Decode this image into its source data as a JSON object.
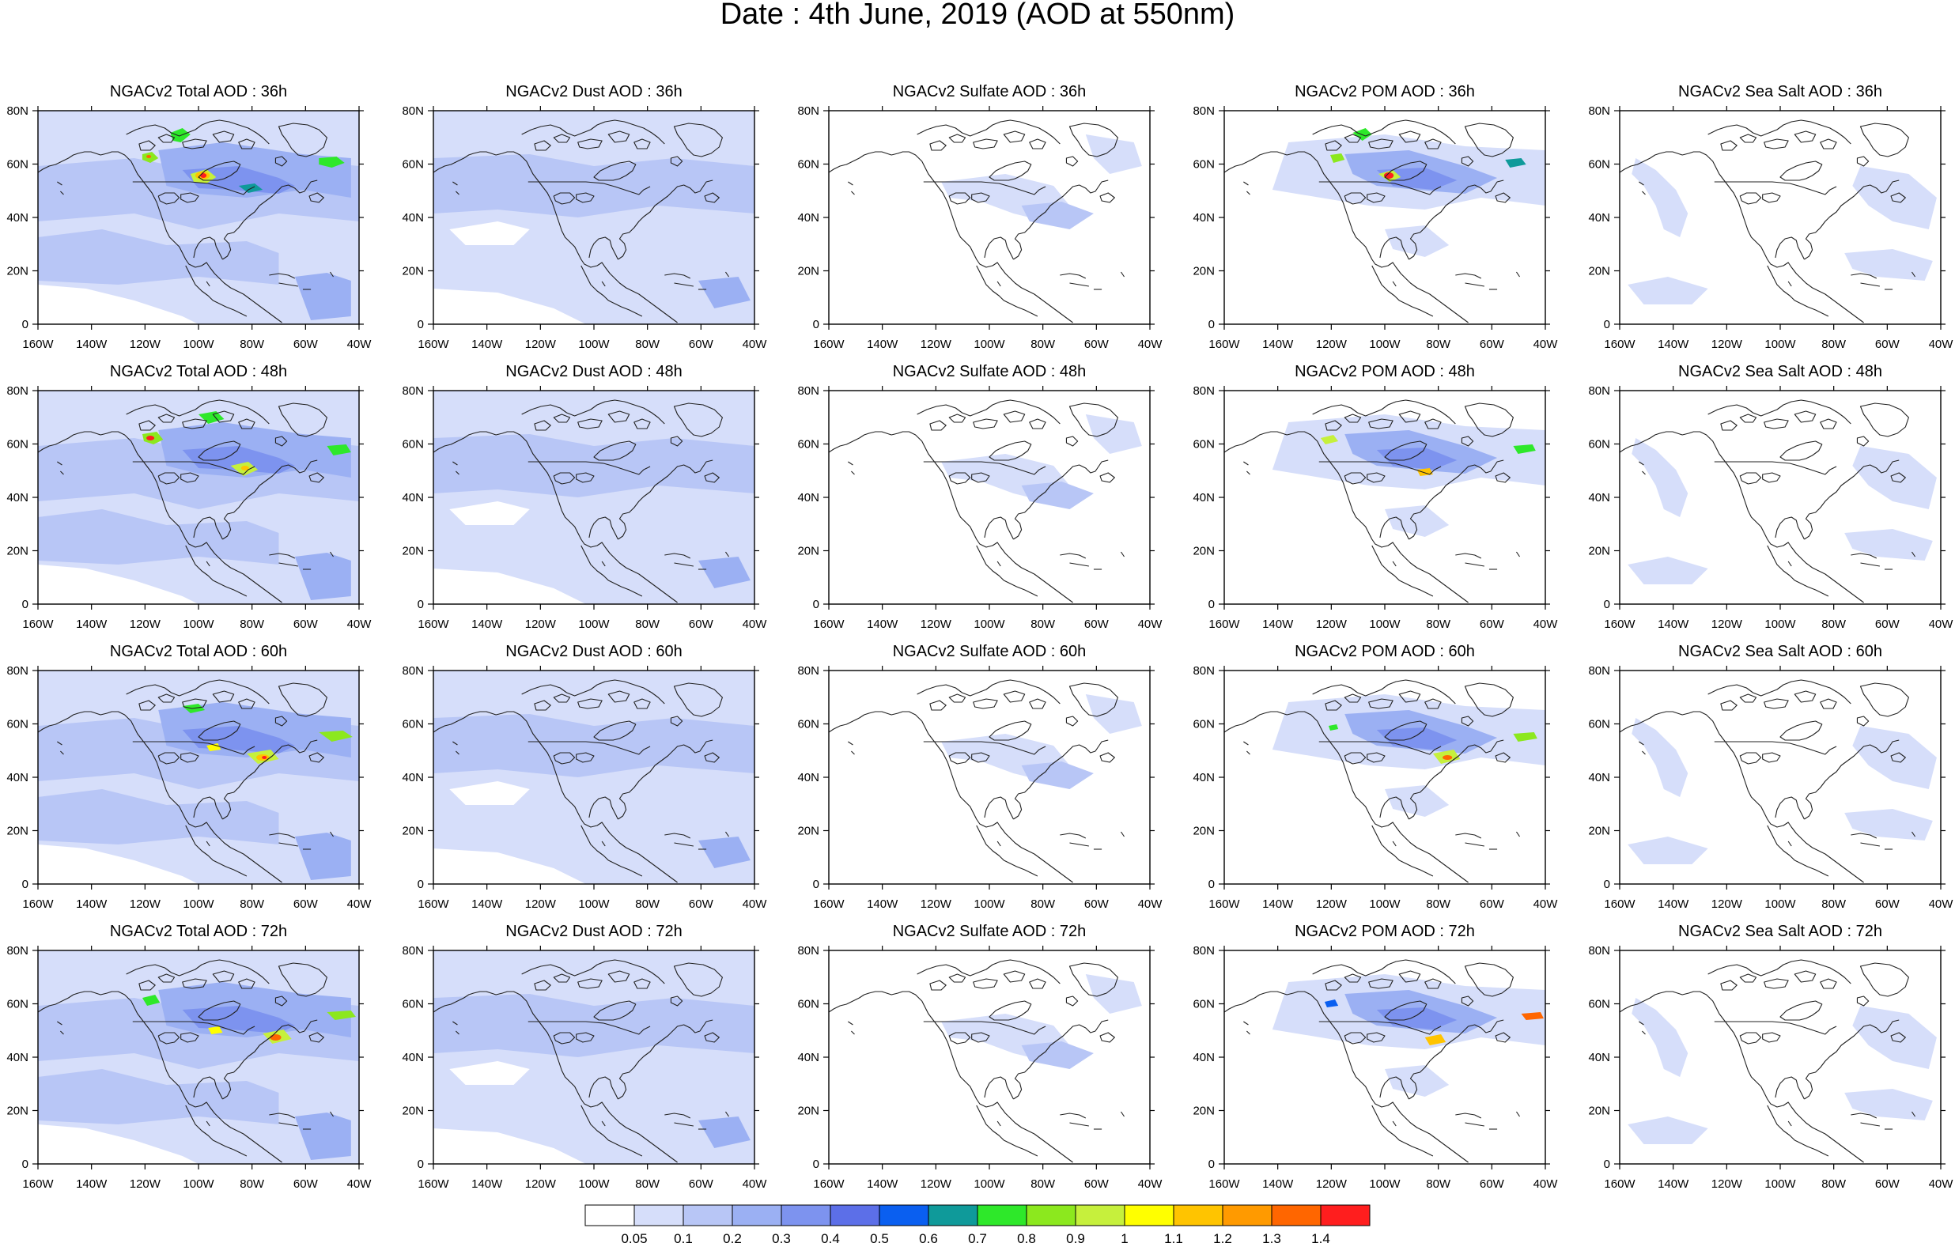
{
  "title": "Date : 4th June, 2019 (AOD at 550nm)",
  "panel_titles": [
    [
      "NGACv2 Total AOD : 36h",
      "NGACv2 Dust AOD : 36h",
      "NGACv2 Sulfate AOD : 36h",
      "NGACv2 POM AOD : 36h",
      "NGACv2 Sea Salt AOD : 36h"
    ],
    [
      "NGACv2 Total AOD : 48h",
      "NGACv2 Dust AOD : 48h",
      "NGACv2 Sulfate AOD : 48h",
      "NGACv2 POM AOD : 48h",
      "NGACv2 Sea Salt AOD : 48h"
    ],
    [
      "NGACv2 Total AOD : 60h",
      "NGACv2 Dust AOD : 60h",
      "NGACv2 Sulfate AOD : 60h",
      "NGACv2 POM AOD : 60h",
      "NGACv2 Sea Salt AOD : 60h"
    ],
    [
      "NGACv2 Total AOD : 72h",
      "NGACv2 Dust AOD : 72h",
      "NGACv2 Sulfate AOD : 72h",
      "NGACv2 POM AOD : 72h",
      "NGACv2 Sea Salt  AOD : 72h"
    ]
  ],
  "x_ticks": [
    "160W",
    "140W",
    "120W",
    "100W",
    "80W",
    "60W",
    "40W"
  ],
  "y_ticks": [
    "0",
    "20N",
    "40N",
    "60N",
    "80N"
  ],
  "colorbar": {
    "labels": [
      "0.05",
      "0.1",
      "0.2",
      "0.3",
      "0.4",
      "0.5",
      "0.6",
      "0.7",
      "0.8",
      "0.9",
      "1",
      "1.1",
      "1.2",
      "1.3",
      "1.4"
    ],
    "colors": [
      "#ffffff",
      "#d6defa",
      "#b8c6f6",
      "#9bb0f3",
      "#7d93ef",
      "#5c6fe8",
      "#0a5ff0",
      "#0f9a9a",
      "#2ee82a",
      "#8ce81e",
      "#c6f03c",
      "#ffff00",
      "#ffc400",
      "#ff9a00",
      "#ff6600",
      "#ff1e1e"
    ]
  }
}
